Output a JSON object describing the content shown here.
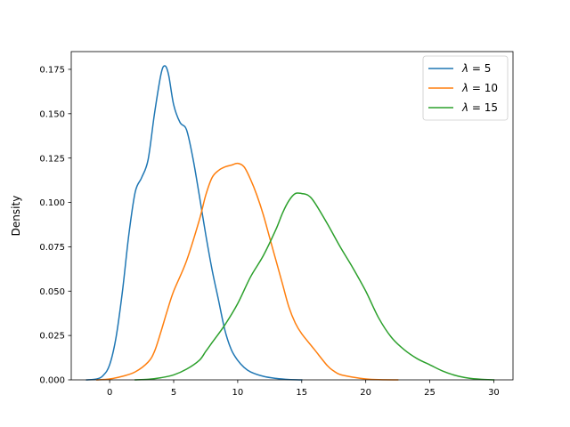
{
  "chart_data": {
    "type": "line",
    "title": "",
    "xlabel": "",
    "ylabel": "Density",
    "xlim": [
      -3.0,
      31.5
    ],
    "ylim": [
      0.0,
      0.185
    ],
    "x_ticks": [
      0,
      5,
      10,
      15,
      20,
      25,
      30
    ],
    "x_tick_labels": [
      "0",
      "5",
      "10",
      "15",
      "20",
      "25",
      "30"
    ],
    "y_ticks": [
      0.0,
      0.025,
      0.05,
      0.075,
      0.1,
      0.125,
      0.15,
      0.175
    ],
    "y_tick_labels": [
      "0.000",
      "0.025",
      "0.050",
      "0.075",
      "0.100",
      "0.125",
      "0.150",
      "0.175"
    ],
    "grid": false,
    "legend_position": "top-right",
    "series": [
      {
        "name": "λ = 5",
        "legend_symbol": "λ",
        "legend_value": "5",
        "color": "#1f77b4",
        "x": [
          -1.8,
          -1.0,
          -0.5,
          0.0,
          0.5,
          1.0,
          1.5,
          2.0,
          2.5,
          3.0,
          3.5,
          4.0,
          4.3,
          4.6,
          5.0,
          5.5,
          6.0,
          6.5,
          7.0,
          7.5,
          8.0,
          8.5,
          9.0,
          9.5,
          10.0,
          10.5,
          11.0,
          12.0,
          13.0,
          14.0,
          15.0
        ],
        "y": [
          0.0,
          0.0005,
          0.0025,
          0.0085,
          0.024,
          0.05,
          0.082,
          0.106,
          0.114,
          0.124,
          0.15,
          0.172,
          0.177,
          0.172,
          0.155,
          0.145,
          0.141,
          0.125,
          0.104,
          0.082,
          0.062,
          0.045,
          0.028,
          0.017,
          0.011,
          0.007,
          0.0045,
          0.002,
          0.0008,
          0.0002,
          0.0
        ]
      },
      {
        "name": "λ = 10",
        "legend_symbol": "λ",
        "legend_value": "10",
        "color": "#ff7f0e",
        "x": [
          -1.0,
          0.0,
          1.0,
          2.0,
          3.0,
          3.5,
          4.0,
          4.5,
          5.0,
          6.0,
          7.0,
          7.5,
          8.0,
          8.5,
          9.0,
          9.5,
          10.0,
          10.5,
          11.0,
          11.5,
          12.0,
          12.5,
          13.0,
          13.5,
          14.0,
          14.5,
          15.0,
          16.0,
          17.0,
          17.5,
          18.0,
          19.0,
          20.0,
          21.0,
          22.5
        ],
        "y": [
          0.0,
          0.0005,
          0.002,
          0.0045,
          0.01,
          0.016,
          0.027,
          0.039,
          0.05,
          0.067,
          0.09,
          0.104,
          0.114,
          0.118,
          0.12,
          0.121,
          0.122,
          0.12,
          0.113,
          0.104,
          0.093,
          0.08,
          0.067,
          0.054,
          0.041,
          0.032,
          0.026,
          0.017,
          0.008,
          0.005,
          0.003,
          0.0015,
          0.0005,
          0.0001,
          0.0
        ]
      },
      {
        "name": "λ = 15",
        "legend_symbol": "λ",
        "legend_value": "15",
        "color": "#2ca02c",
        "x": [
          2.0,
          3.0,
          4.0,
          5.0,
          6.0,
          7.0,
          7.5,
          8.0,
          9.0,
          10.0,
          11.0,
          12.0,
          13.0,
          13.5,
          14.0,
          14.5,
          15.0,
          15.5,
          16.0,
          17.0,
          18.0,
          19.0,
          20.0,
          21.0,
          22.0,
          23.0,
          24.0,
          25.0,
          26.0,
          27.0,
          28.0,
          29.0,
          30.0
        ],
        "y": [
          0.0,
          0.0003,
          0.0012,
          0.0028,
          0.006,
          0.011,
          0.016,
          0.021,
          0.031,
          0.043,
          0.058,
          0.07,
          0.085,
          0.094,
          0.101,
          0.105,
          0.105,
          0.104,
          0.1,
          0.088,
          0.075,
          0.063,
          0.05,
          0.035,
          0.024,
          0.017,
          0.012,
          0.0085,
          0.005,
          0.0025,
          0.001,
          0.0003,
          0.0
        ]
      }
    ]
  }
}
